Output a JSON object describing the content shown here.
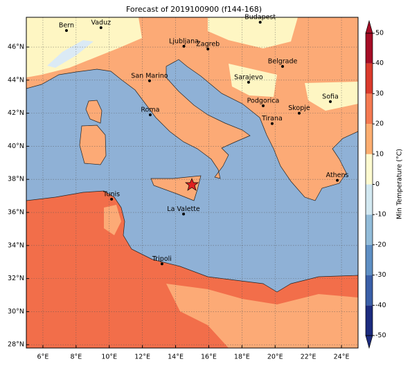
{
  "title": "Forecast of 2019100900 (f144-168)",
  "map": {
    "xlim": [
      5,
      25
    ],
    "ylim": [
      27.8,
      47.8
    ],
    "xticks": [
      {
        "value": 6,
        "label": "6°E"
      },
      {
        "value": 8,
        "label": "8°E"
      },
      {
        "value": 10,
        "label": "10°E"
      },
      {
        "value": 12,
        "label": "12°E"
      },
      {
        "value": 14,
        "label": "14°E"
      },
      {
        "value": 16,
        "label": "16°E"
      },
      {
        "value": 18,
        "label": "18°E"
      },
      {
        "value": 20,
        "label": "20°E"
      },
      {
        "value": 22,
        "label": "22°E"
      },
      {
        "value": 24,
        "label": "24°E"
      }
    ],
    "yticks": [
      {
        "value": 28,
        "label": "28°N"
      },
      {
        "value": 30,
        "label": "30°N"
      },
      {
        "value": 32,
        "label": "32°N"
      },
      {
        "value": 34,
        "label": "34°N"
      },
      {
        "value": 36,
        "label": "36°N"
      },
      {
        "value": 38,
        "label": "38°N"
      },
      {
        "value": 40,
        "label": "40°N"
      },
      {
        "value": 42,
        "label": "42°N"
      },
      {
        "value": 44,
        "label": "44°N"
      },
      {
        "value": 46,
        "label": "46°N"
      }
    ],
    "grid": true,
    "cities": [
      {
        "name": "Bern",
        "lon": 7.42,
        "lat": 47.0
      },
      {
        "name": "Vaduz",
        "lon": 9.5,
        "lat": 47.17
      },
      {
        "name": "Budapest",
        "lon": 19.1,
        "lat": 47.5
      },
      {
        "name": "Ljubljana",
        "lon": 14.5,
        "lat": 46.05
      },
      {
        "name": "Zagreb",
        "lon": 15.95,
        "lat": 45.88
      },
      {
        "name": "Belgrade",
        "lon": 20.45,
        "lat": 44.83
      },
      {
        "name": "San Marino",
        "lon": 12.43,
        "lat": 43.96
      },
      {
        "name": "Sarajevo",
        "lon": 18.4,
        "lat": 43.87
      },
      {
        "name": "Sofia",
        "lon": 23.33,
        "lat": 42.7
      },
      {
        "name": "Roma",
        "lon": 12.47,
        "lat": 41.9
      },
      {
        "name": "Podgorica",
        "lon": 19.28,
        "lat": 42.45
      },
      {
        "name": "Skopje",
        "lon": 21.45,
        "lat": 42.0
      },
      {
        "name": "Tirana",
        "lon": 19.82,
        "lat": 41.37
      },
      {
        "name": "Athens",
        "lon": 23.75,
        "lat": 37.94
      },
      {
        "name": "Tunis",
        "lon": 10.14,
        "lat": 36.8
      },
      {
        "name": "La Valette",
        "lon": 14.48,
        "lat": 35.9
      },
      {
        "name": "Tripoli",
        "lon": 13.18,
        "lat": 32.89
      }
    ]
  },
  "colorbar": {
    "label": "Min Temperature (°C)",
    "lim": [
      -50,
      50
    ],
    "ticks": [
      -50,
      -40,
      -30,
      -20,
      -10,
      0,
      10,
      20,
      30,
      40,
      50
    ],
    "colors": [
      "#1c2b7f",
      "#3a5fa8",
      "#5e8fc4",
      "#92bcd9",
      "#d2e8f1",
      "#fefbd0",
      "#fdae71",
      "#f57a52",
      "#da3a2c",
      "#a50d26"
    ]
  }
}
